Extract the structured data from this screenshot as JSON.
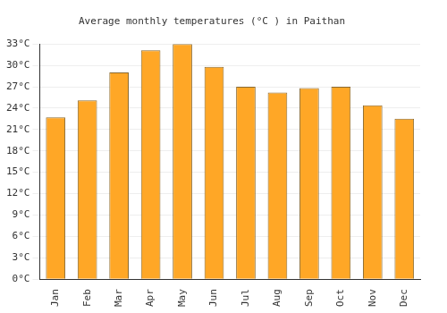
{
  "chart_data": {
    "type": "bar",
    "title": "Average monthly temperatures (°C ) in Paithan",
    "categories": [
      "Jan",
      "Feb",
      "Mar",
      "Apr",
      "May",
      "Jun",
      "Jul",
      "Aug",
      "Sep",
      "Oct",
      "Nov",
      "Dec"
    ],
    "values": [
      22.7,
      25.1,
      29.0,
      32.1,
      33.0,
      29.8,
      27.0,
      26.2,
      26.8,
      27.0,
      24.4,
      22.5
    ],
    "color": "#ffa726",
    "ylim": [
      0,
      33
    ],
    "yticks": [
      {
        "value": 0,
        "label": "0°C"
      },
      {
        "value": 3,
        "label": "3°C"
      },
      {
        "value": 6,
        "label": "6°C"
      },
      {
        "value": 9,
        "label": "9°C"
      },
      {
        "value": 12,
        "label": "12°C"
      },
      {
        "value": 15,
        "label": "15°C"
      },
      {
        "value": 18,
        "label": "18°C"
      },
      {
        "value": 21,
        "label": "21°C"
      },
      {
        "value": 24,
        "label": "24°C"
      },
      {
        "value": 27,
        "label": "27°C"
      },
      {
        "value": 30,
        "label": "30°C"
      },
      {
        "value": 33,
        "label": "33°C"
      }
    ],
    "grid": true
  }
}
